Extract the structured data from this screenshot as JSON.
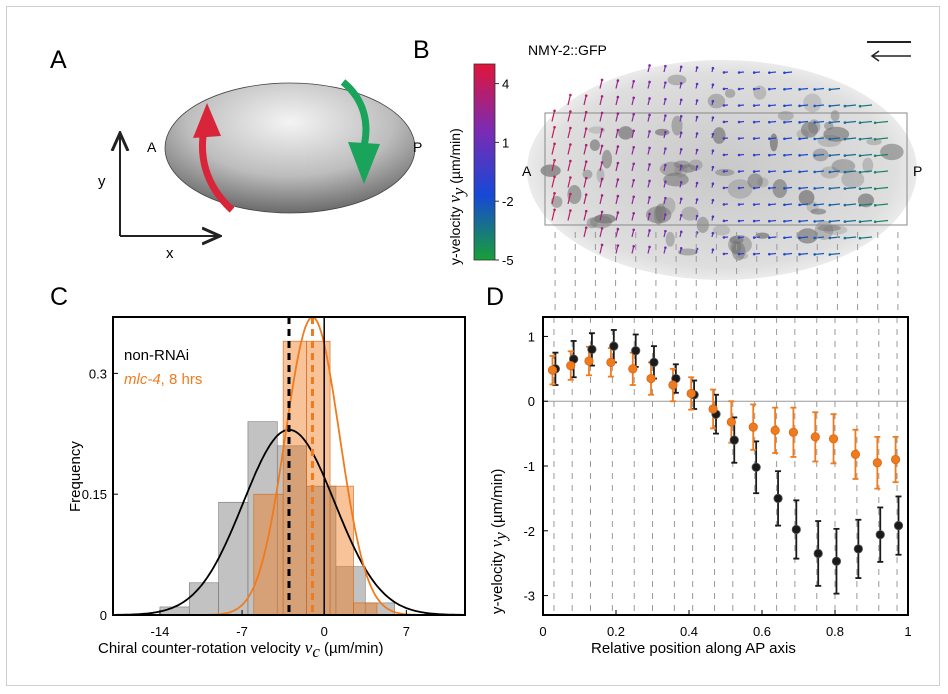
{
  "panels": {
    "A": {
      "label": "A",
      "anterior": "A",
      "posterior": "P",
      "axis_x": "x",
      "axis_y": "y",
      "colors": {
        "left_arrow": "#d8253a",
        "right_arrow": "#1aa35a"
      }
    },
    "B": {
      "label": "B",
      "title": "NMY-2::GFP",
      "anterior": "A",
      "posterior": "P",
      "colorbar": {
        "label_prefix": "y-velocity",
        "label_var": "v",
        "label_sub": "y",
        "label_unit": "(µm/min)",
        "ticks": [
          "4",
          "1",
          "-2",
          "-5"
        ],
        "tick_values": [
          4,
          1,
          -2,
          -5
        ],
        "range": [
          -5,
          5
        ],
        "colors": [
          "#18a038",
          "#1648d6",
          "#7b2bb4",
          "#e0153a"
        ]
      }
    },
    "C": {
      "label": "C",
      "legend": {
        "series1": "non-RNAi",
        "series2_italic": "mlc-4",
        "series2_rest": ", 8 hrs"
      },
      "ylabel": "Frequency",
      "xlabel_prefix": "Chiral counter-rotation velocity",
      "xlabel_var": "v",
      "xlabel_sub": "c",
      "xlabel_unit": "(µm/min)",
      "xticks": [
        "-14",
        "-7",
        "0",
        "7"
      ],
      "yticks": [
        "0",
        "0.15",
        "0.3"
      ],
      "colors": {
        "series1": "#000000",
        "series2": "#f07b1d"
      }
    },
    "D": {
      "label": "D",
      "ylabel_prefix": "y-velocity",
      "ylabel_var": "v",
      "ylabel_sub": "y",
      "ylabel_unit": "(µm/min)",
      "xlabel": "Relative position along AP axis",
      "xticks": [
        "0",
        "0.2",
        "0.4",
        "0.6",
        "0.8",
        "1"
      ],
      "yticks": [
        "1",
        "0",
        "-1",
        "-2",
        "-3"
      ],
      "colors": {
        "series1": "#1a1a1a",
        "series2": "#f07b1d"
      }
    }
  },
  "chart_data": [
    {
      "type": "bar",
      "panel": "C",
      "xlabel": "Chiral counter-rotation velocity vc (µm/min)",
      "ylabel": "Frequency",
      "xlim": [
        -18,
        12
      ],
      "ylim": [
        0,
        0.37
      ],
      "bin_edges": [
        -14,
        -11.5,
        -9,
        -6.5,
        -4,
        -1.5,
        1,
        3.5,
        6
      ],
      "series": [
        {
          "name": "non-RNAi",
          "values": [
            0.01,
            0.04,
            0.14,
            0.24,
            0.21,
            0.16,
            0.06,
            0.015
          ],
          "mean": -3,
          "fit_peak": 0.23
        },
        {
          "name": "mlc-4, 8 hrs",
          "bins": [
            -6,
            -3.5,
            -1.5,
            0.5,
            2.5
          ],
          "values": [
            0.15,
            0.34,
            0.34,
            0.16,
            0.015
          ],
          "mean": -1,
          "fit_peak": 0.37
        }
      ]
    },
    {
      "type": "scatter",
      "panel": "D",
      "xlabel": "Relative position along AP axis",
      "ylabel": "y-velocity vy (µm/min)",
      "xlim": [
        0,
        1
      ],
      "ylim": [
        -3.3,
        1.3
      ],
      "x": [
        0.03,
        0.08,
        0.13,
        0.19,
        0.25,
        0.3,
        0.36,
        0.41,
        0.47,
        0.52,
        0.58,
        0.64,
        0.69,
        0.75,
        0.8,
        0.86,
        0.92,
        0.97
      ],
      "series": [
        {
          "name": "non-RNAi",
          "values": [
            0.5,
            0.65,
            0.8,
            0.85,
            0.78,
            0.6,
            0.35,
            0.1,
            -0.2,
            -0.6,
            -1.02,
            -1.5,
            -1.98,
            -2.35,
            -2.47,
            -2.28,
            -2.06,
            -1.92
          ],
          "errors": [
            0.25,
            0.28,
            0.25,
            0.25,
            0.25,
            0.25,
            0.22,
            0.22,
            0.3,
            0.35,
            0.4,
            0.42,
            0.45,
            0.5,
            0.5,
            0.45,
            0.42,
            0.45
          ]
        },
        {
          "name": "mlc-4, 8 hrs",
          "values": [
            0.48,
            0.55,
            0.62,
            0.6,
            0.5,
            0.35,
            0.25,
            0.12,
            -0.12,
            -0.32,
            -0.4,
            -0.45,
            -0.48,
            -0.55,
            -0.58,
            -0.82,
            -0.95,
            -0.9
          ],
          "errors": [
            0.22,
            0.22,
            0.22,
            0.22,
            0.25,
            0.25,
            0.25,
            0.25,
            0.3,
            0.32,
            0.35,
            0.35,
            0.38,
            0.38,
            0.38,
            0.38,
            0.4,
            0.35
          ]
        }
      ]
    }
  ]
}
